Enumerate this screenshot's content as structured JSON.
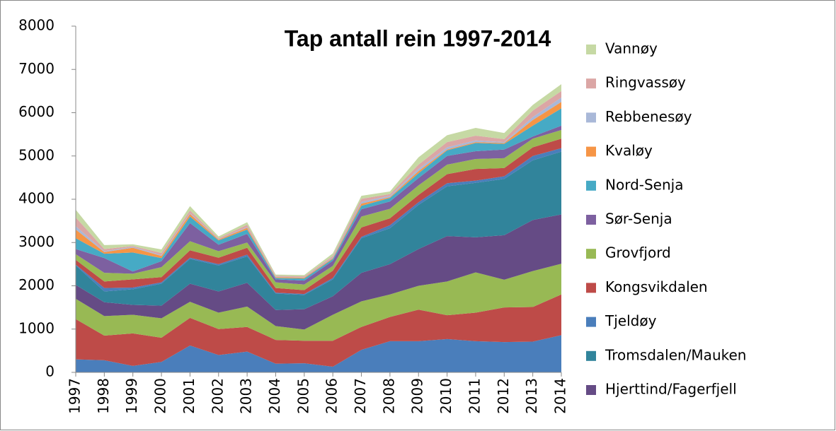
{
  "chart_data": {
    "type": "stacked_area",
    "title": "Tap antall rein 1997-2014",
    "x": [
      1997,
      1998,
      1999,
      2000,
      2001,
      2002,
      2003,
      2004,
      2005,
      2006,
      2007,
      2008,
      2009,
      2010,
      2011,
      2012,
      2013,
      2014
    ],
    "xlim": [
      1997,
      2014
    ],
    "ylim": [
      0,
      8000
    ],
    "yticks": [
      0,
      1000,
      2000,
      3000,
      4000,
      5000,
      6000,
      7000,
      8000
    ],
    "grid": false,
    "legend": "right",
    "series": [
      {
        "color": "#4A7EBB",
        "values": [
          300,
          280,
          150,
          240,
          620,
          400,
          480,
          200,
          210,
          130,
          520,
          720,
          720,
          770,
          720,
          700,
          710,
          860
        ]
      },
      {
        "color": "#BE4B48",
        "values": [
          930,
          570,
          750,
          560,
          640,
          600,
          570,
          550,
          520,
          600,
          530,
          560,
          730,
          550,
          660,
          800,
          800,
          940
        ]
      },
      {
        "color": "#98B954",
        "values": [
          470,
          450,
          430,
          450,
          370,
          380,
          470,
          320,
          260,
          600,
          590,
          520,
          550,
          780,
          930,
          640,
          830,
          710
        ]
      },
      {
        "name": "Hjerttind/Fagerfjell",
        "color": "#654B85",
        "values": [
          320,
          320,
          230,
          290,
          420,
          490,
          550,
          370,
          470,
          430,
          660,
          700,
          850,
          1050,
          810,
          1030,
          1180,
          1140
        ]
      },
      {
        "name": "Tromsdalen/Mauken",
        "color": "#31849B",
        "values": [
          450,
          250,
          360,
          510,
          570,
          600,
          610,
          380,
          330,
          390,
          800,
          830,
          1020,
          1150,
          1260,
          1300,
          1380,
          1450
        ]
      },
      {
        "name": "Tjeldøy",
        "color": "#4A7EBB",
        "values": [
          20,
          80,
          40,
          30,
          30,
          30,
          40,
          20,
          20,
          30,
          30,
          70,
          60,
          70,
          50,
          60,
          100,
          80
        ]
      },
      {
        "name": "Kongsvikdalen",
        "color": "#BE4B48",
        "values": [
          110,
          150,
          190,
          120,
          170,
          150,
          160,
          110,
          90,
          170,
          220,
          160,
          170,
          210,
          270,
          190,
          200,
          220
        ]
      },
      {
        "name": "Grovfjord",
        "color": "#98B954",
        "values": [
          130,
          200,
          130,
          230,
          210,
          150,
          120,
          130,
          130,
          110,
          250,
          220,
          220,
          220,
          230,
          230,
          200,
          200
        ]
      },
      {
        "name": "Sør-Senja",
        "color": "#7D60A0",
        "values": [
          120,
          340,
          50,
          140,
          420,
          150,
          200,
          70,
          90,
          120,
          170,
          170,
          170,
          200,
          180,
          200,
          50,
          100
        ]
      },
      {
        "name": "Nord-Senja",
        "color": "#46AAC5",
        "values": [
          250,
          100,
          440,
          70,
          150,
          100,
          100,
          30,
          50,
          40,
          80,
          80,
          110,
          130,
          190,
          130,
          250,
          400
        ]
      },
      {
        "name": "Kvaløy",
        "color": "#F69546",
        "values": [
          200,
          40,
          110,
          50,
          60,
          20,
          40,
          20,
          20,
          20,
          50,
          20,
          50,
          20,
          20,
          20,
          130,
          150
        ]
      },
      {
        "name": "Rebbenesøy",
        "color": "#A9B8D8",
        "values": [
          80,
          20,
          20,
          20,
          20,
          10,
          20,
          10,
          10,
          20,
          40,
          30,
          50,
          50,
          40,
          20,
          70,
          100
        ]
      },
      {
        "name": "Ringvassøy",
        "color": "#DBA6A5",
        "values": [
          200,
          50,
          20,
          50,
          60,
          20,
          50,
          20,
          20,
          30,
          70,
          40,
          100,
          120,
          110,
          70,
          150,
          150
        ]
      },
      {
        "name": "Vannøy",
        "color": "#C6D9A4",
        "values": [
          180,
          90,
          40,
          80,
          100,
          40,
          60,
          30,
          30,
          60,
          70,
          60,
          170,
          160,
          180,
          140,
          130,
          160
        ]
      }
    ]
  }
}
